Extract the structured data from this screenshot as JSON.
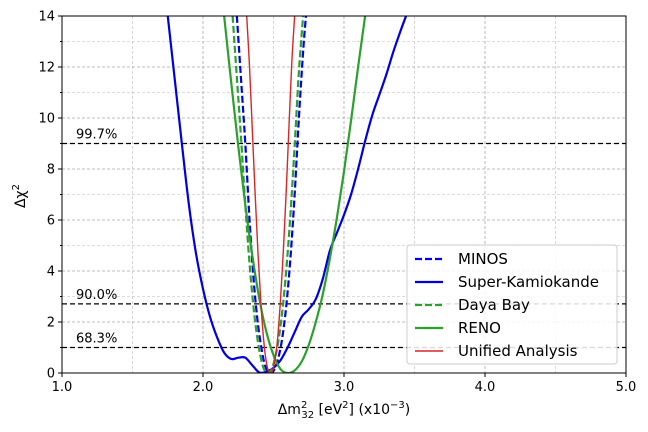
{
  "chart_data": {
    "type": "line",
    "xlabel_main": "Δm",
    "xlabel_sub": "32",
    "xlabel_sup": "2",
    "xlabel_tail": " [eV",
    "xlabel_tail_sup": "2",
    "xlabel_end": "] (x10",
    "xlabel_end_sup": "−3",
    "xlabel_close": ")",
    "ylabel_main": "Δχ",
    "ylabel_sup": "2",
    "xlim": [
      1.0,
      5.0
    ],
    "ylim": [
      0,
      14
    ],
    "xticks": [
      1.0,
      2.0,
      3.0,
      4.0,
      5.0
    ],
    "xtick_labels": [
      "1.0",
      "2.0",
      "3.0",
      "4.0",
      "5.0"
    ],
    "yticks": [
      0,
      2,
      4,
      6,
      8,
      10,
      12,
      14
    ],
    "ytick_labels": [
      "0",
      "2",
      "4",
      "6",
      "8",
      "10",
      "12",
      "14"
    ],
    "grid": true,
    "legend_position": "bottom-right",
    "confidence_levels": [
      {
        "label": "99.7%",
        "y": 9.0
      },
      {
        "label": "90.0%",
        "y": 2.71
      },
      {
        "label": "68.3%",
        "y": 1.0
      }
    ],
    "series": [
      {
        "name": "MINOS",
        "color": "#0000ee",
        "dash": true,
        "x": [
          2.24,
          2.27,
          2.3,
          2.33,
          2.36,
          2.39,
          2.42,
          2.44,
          2.46,
          2.48,
          2.5,
          2.53,
          2.56,
          2.59,
          2.62,
          2.65,
          2.68,
          2.71,
          2.73
        ],
        "y": [
          14,
          11.5,
          9.0,
          6.0,
          3.6,
          1.9,
          0.8,
          0.3,
          0.05,
          0.0,
          0.08,
          0.5,
          1.3,
          2.6,
          4.5,
          7.0,
          10.0,
          12.6,
          14
        ]
      },
      {
        "name": "Super-Kamiokande",
        "color": "#0000dd",
        "dash": false,
        "x": [
          1.75,
          1.8,
          1.85,
          1.9,
          1.95,
          2.0,
          2.05,
          2.1,
          2.15,
          2.2,
          2.25,
          2.3,
          2.35,
          2.4,
          2.45,
          2.5,
          2.55,
          2.6,
          2.65,
          2.7,
          2.75,
          2.8,
          2.85,
          2.9,
          2.95,
          3.0,
          3.05,
          3.1,
          3.15,
          3.2,
          3.25,
          3.3,
          3.35,
          3.4,
          3.44
        ],
        "y": [
          14,
          11.5,
          9.0,
          6.6,
          4.7,
          3.3,
          2.2,
          1.4,
          0.8,
          0.55,
          0.6,
          0.6,
          0.3,
          0.02,
          0.05,
          0.2,
          0.5,
          1.0,
          1.6,
          2.2,
          2.5,
          2.9,
          3.7,
          4.8,
          5.5,
          6.2,
          7.0,
          8.0,
          9.1,
          10.1,
          10.9,
          11.7,
          12.6,
          13.4,
          14
        ]
      },
      {
        "name": "Daya Bay",
        "color": "#2ca02c",
        "dash": true,
        "x": [
          2.21,
          2.24,
          2.27,
          2.3,
          2.33,
          2.36,
          2.39,
          2.42,
          2.44,
          2.46,
          2.48,
          2.5,
          2.53,
          2.56,
          2.59,
          2.62,
          2.65,
          2.68,
          2.71
        ],
        "y": [
          14,
          11.6,
          9.2,
          6.6,
          4.3,
          2.5,
          1.2,
          0.35,
          0.08,
          0.0,
          0.08,
          0.35,
          1.1,
          2.3,
          4.0,
          6.2,
          8.9,
          11.8,
          14
        ]
      },
      {
        "name": "RENO",
        "color": "#2ca02c",
        "dash": false,
        "x": [
          2.15,
          2.2,
          2.25,
          2.3,
          2.35,
          2.4,
          2.45,
          2.5,
          2.55,
          2.6,
          2.65,
          2.7,
          2.75,
          2.8,
          2.85,
          2.9,
          2.95,
          3.0,
          3.05,
          3.1,
          3.15
        ],
        "y": [
          14,
          11.4,
          8.9,
          6.6,
          4.6,
          2.9,
          1.6,
          0.7,
          0.15,
          0.0,
          0.1,
          0.45,
          1.1,
          2.0,
          3.1,
          4.5,
          6.1,
          7.9,
          9.9,
          12.0,
          14
        ]
      },
      {
        "name": "Unified Analysis",
        "color": "#d62728",
        "dash": false,
        "x": [
          2.31,
          2.33,
          2.35,
          2.37,
          2.39,
          2.41,
          2.43,
          2.45,
          2.47,
          2.49,
          2.51,
          2.53,
          2.55,
          2.57,
          2.59,
          2.61,
          2.63,
          2.65
        ],
        "y": [
          14,
          12.0,
          9.5,
          7.0,
          4.7,
          2.8,
          1.3,
          0.4,
          0.02,
          0.05,
          0.5,
          1.4,
          2.9,
          4.8,
          7.1,
          9.7,
          12.2,
          14
        ]
      }
    ]
  }
}
